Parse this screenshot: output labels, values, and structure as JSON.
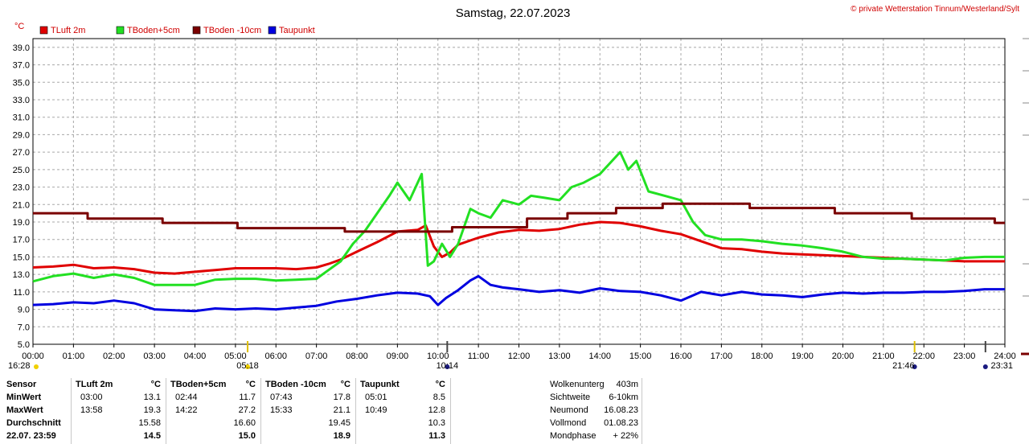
{
  "header": {
    "title": "Samstag, 22.07.2023",
    "copyright": "© private Wetterstation Tinnum/Westerland/Sylt",
    "unit": "°C"
  },
  "legend": [
    {
      "name": "TLuft 2m",
      "color": "#e00000"
    },
    {
      "name": "TBoden+5cm",
      "color": "#22e022"
    },
    {
      "name": "TBoden -10cm",
      "color": "#7a0000"
    },
    {
      "name": "Taupunkt",
      "color": "#0000e0"
    }
  ],
  "chart_data": {
    "type": "line",
    "title": "Samstag, 22.07.2023",
    "ylabel": "°C",
    "xlim": [
      0,
      24
    ],
    "ylim": [
      5.0,
      40.0
    ],
    "y_ticks": [
      "5.0",
      "7.0",
      "9.0",
      "11.0",
      "13.0",
      "15.0",
      "17.0",
      "19.0",
      "21.0",
      "23.0",
      "25.0",
      "27.0",
      "29.0",
      "31.0",
      "33.0",
      "35.0",
      "37.0",
      "39.0"
    ],
    "x_ticks": [
      "00:00",
      "01:00",
      "02:00",
      "03:00",
      "04:00",
      "05:00",
      "06:00",
      "07:00",
      "08:00",
      "09:00",
      "10:00",
      "11:00",
      "12:00",
      "13:00",
      "14:00",
      "15:00",
      "16:00",
      "17:00",
      "18:00",
      "19:00",
      "20:00",
      "21:00",
      "22:00",
      "23:00",
      "24:00"
    ],
    "grid": true,
    "series": [
      {
        "name": "TLuft 2m",
        "color": "#e00000",
        "x": [
          0,
          0.5,
          1,
          1.5,
          2,
          2.5,
          3,
          3.5,
          4,
          4.5,
          5,
          5.5,
          6,
          6.5,
          7,
          7.3,
          7.6,
          8,
          8.5,
          9,
          9.5,
          9.7,
          9.9,
          10.1,
          10.3,
          10.5,
          11,
          11.5,
          12,
          12.5,
          13,
          13.5,
          14,
          14.5,
          15,
          15.5,
          16,
          16.5,
          17,
          17.5,
          18,
          18.5,
          19,
          19.5,
          20,
          20.5,
          21,
          21.5,
          22,
          22.5,
          23,
          23.5,
          24
        ],
        "y": [
          13.8,
          13.9,
          14.1,
          13.7,
          13.8,
          13.6,
          13.2,
          13.1,
          13.3,
          13.5,
          13.7,
          13.7,
          13.7,
          13.6,
          13.8,
          14.2,
          14.7,
          15.6,
          16.7,
          17.9,
          18.1,
          18.6,
          16.2,
          15.0,
          15.5,
          16.4,
          17.2,
          17.8,
          18.1,
          18.0,
          18.2,
          18.7,
          19.0,
          18.9,
          18.5,
          18.0,
          17.6,
          16.8,
          16.0,
          15.9,
          15.6,
          15.4,
          15.3,
          15.2,
          15.1,
          15.0,
          14.9,
          14.8,
          14.7,
          14.6,
          14.5,
          14.5,
          14.5
        ]
      },
      {
        "name": "TBoden+5cm",
        "color": "#22e022",
        "x": [
          0,
          0.5,
          1,
          1.5,
          2,
          2.5,
          3,
          3.5,
          4,
          4.5,
          5,
          5.5,
          6,
          6.5,
          7,
          7.3,
          7.6,
          7.9,
          8.2,
          8.5,
          8.8,
          9,
          9.3,
          9.6,
          9.75,
          9.9,
          10.1,
          10.3,
          10.5,
          10.8,
          11,
          11.3,
          11.6,
          12,
          12.3,
          12.6,
          13,
          13.3,
          13.6,
          14,
          14.3,
          14.5,
          14.7,
          14.9,
          15.2,
          15.6,
          16,
          16.3,
          16.6,
          17,
          17.5,
          18,
          18.5,
          19,
          19.5,
          20,
          20.5,
          21,
          21.5,
          22,
          22.5,
          23,
          23.5,
          24
        ],
        "y": [
          12.2,
          12.8,
          13.1,
          12.6,
          13.0,
          12.6,
          11.8,
          11.8,
          11.8,
          12.4,
          12.5,
          12.5,
          12.3,
          12.4,
          12.5,
          13.5,
          14.5,
          16.5,
          18.0,
          20.0,
          22.0,
          23.5,
          21.5,
          24.5,
          14.0,
          14.5,
          16.5,
          15.0,
          16.5,
          20.5,
          20.0,
          19.5,
          21.5,
          21.0,
          22.0,
          21.8,
          21.5,
          23.0,
          23.5,
          24.5,
          26.0,
          27.0,
          25.0,
          26.0,
          22.5,
          22.0,
          21.5,
          19.0,
          17.5,
          17.0,
          17.0,
          16.8,
          16.5,
          16.3,
          16.0,
          15.6,
          15.0,
          14.8,
          14.8,
          14.7,
          14.6,
          14.9,
          15.0,
          15.0
        ]
      },
      {
        "name": "TBoden -10cm",
        "color": "#7a0000",
        "x": [
          0,
          1.35,
          1.35,
          3.2,
          3.2,
          5.05,
          5.05,
          7.7,
          7.7,
          10.35,
          10.35,
          12.2,
          12.2,
          13.2,
          13.2,
          14.4,
          14.4,
          15.55,
          15.55,
          17.7,
          17.7,
          19.8,
          19.8,
          21.7,
          21.7,
          23.75,
          23.75,
          24
        ],
        "y": [
          20.0,
          20.0,
          19.4,
          19.4,
          18.9,
          18.9,
          18.3,
          18.3,
          17.9,
          17.9,
          18.4,
          18.4,
          19.4,
          19.4,
          20.0,
          20.0,
          20.6,
          20.6,
          21.1,
          21.1,
          20.6,
          20.6,
          20.0,
          20.0,
          19.4,
          19.4,
          18.9,
          18.9
        ]
      },
      {
        "name": "Taupunkt",
        "color": "#0000e0",
        "x": [
          0,
          0.5,
          1,
          1.5,
          2,
          2.5,
          3,
          3.5,
          4,
          4.5,
          5,
          5.5,
          6,
          6.5,
          7,
          7.5,
          8,
          8.5,
          9,
          9.5,
          9.8,
          10.0,
          10.2,
          10.5,
          10.8,
          11,
          11.3,
          11.6,
          12,
          12.5,
          13,
          13.5,
          14,
          14.5,
          15,
          15.5,
          16,
          16.5,
          17,
          17.5,
          18,
          18.5,
          19,
          19.5,
          20,
          20.5,
          21,
          21.5,
          22,
          22.5,
          23,
          23.5,
          24
        ],
        "y": [
          9.5,
          9.6,
          9.8,
          9.7,
          10.0,
          9.7,
          9.0,
          8.9,
          8.8,
          9.1,
          9.0,
          9.1,
          9.0,
          9.2,
          9.4,
          9.9,
          10.2,
          10.6,
          10.9,
          10.8,
          10.5,
          9.5,
          10.3,
          11.2,
          12.3,
          12.8,
          11.8,
          11.5,
          11.3,
          11.0,
          11.2,
          10.9,
          11.4,
          11.1,
          11.0,
          10.6,
          10.0,
          11.0,
          10.6,
          11.0,
          10.7,
          10.6,
          10.4,
          10.7,
          10.9,
          10.8,
          10.9,
          10.9,
          11.0,
          11.0,
          11.1,
          11.3,
          11.3
        ]
      }
    ],
    "markers": [
      {
        "time": "16:28",
        "hour": 0
      },
      {
        "time": "05:18",
        "hour": 5.3
      },
      {
        "time": "10:14",
        "hour": 10.23
      },
      {
        "time": "21:46",
        "hour": 21.77
      },
      {
        "time": "23:31",
        "hour": 23.52
      }
    ]
  },
  "stats": {
    "sensor_label": "Sensor",
    "min_label": "MinWert",
    "max_label": "MaxWert",
    "avg_label": "Durchschnitt",
    "current_label": "22.07. 23:59",
    "columns": [
      {
        "name": "TLuft 2m",
        "unit": "°C",
        "min_time": "03:00",
        "min": "13.1",
        "max_time": "13:58",
        "max": "19.3",
        "avg": "15.58",
        "current": "14.5"
      },
      {
        "name": "TBoden+5cm",
        "unit": "°C",
        "min_time": "02:44",
        "min": "11.7",
        "max_time": "14:22",
        "max": "27.2",
        "avg": "16.60",
        "current": "15.0"
      },
      {
        "name": "TBoden -10cm",
        "unit": "°C",
        "min_time": "07:43",
        "min": "17.8",
        "max_time": "15:33",
        "max": "21.1",
        "avg": "19.45",
        "current": "18.9"
      },
      {
        "name": "Taupunkt",
        "unit": "°C",
        "min_time": "05:01",
        "min": "8.5",
        "max_time": "10:49",
        "max": "12.8",
        "avg": "10.3",
        "current": "11.3"
      }
    ]
  },
  "info": [
    {
      "label": "Wolkenunterg",
      "value": "403m"
    },
    {
      "label": "Sichtweite",
      "value": "6-10km"
    },
    {
      "label": "Neumond",
      "value": "16.08.23"
    },
    {
      "label": "Vollmond",
      "value": "01.08.23"
    },
    {
      "label": "Mondphase",
      "value": "+ 22%"
    }
  ]
}
